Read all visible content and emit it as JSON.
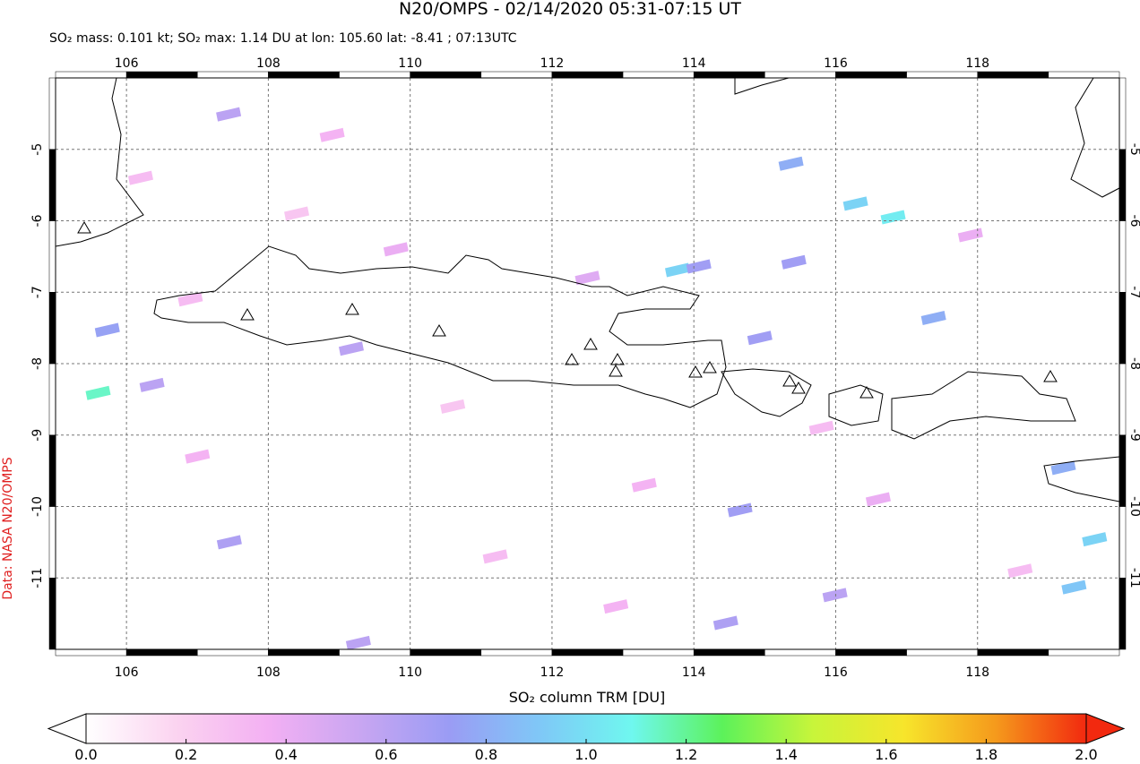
{
  "chart_data": {
    "type": "map",
    "title": "N20/OMPS - 02/14/2020 05:31-07:15 UT",
    "subtitle": "SO₂ mass: 0.101 kt; SO₂ max: 1.14 DU at lon: 105.60 lat: -8.41 ; 07:13UTC",
    "credit": "Data: NASA N20/OMPS",
    "colorbar_label": "SO₂ column TRM [DU]",
    "xlim": [
      105,
      120
    ],
    "ylim": [
      -12,
      -4
    ],
    "xticks": [
      106,
      108,
      110,
      112,
      114,
      116,
      118
    ],
    "yticks": [
      -5,
      -6,
      -7,
      -8,
      -9,
      -10,
      -11
    ],
    "grid": true,
    "clim": [
      0,
      2
    ],
    "cticks": [
      {
        "value": 0,
        "label": "0.0"
      },
      0.2,
      0.4,
      0.6,
      0.8,
      {
        "value": 1,
        "label": "1.0"
      },
      1.2,
      1.4,
      1.6,
      1.8,
      {
        "value": 2,
        "label": "2.0"
      }
    ],
    "colormap": [
      "#ffffff",
      "#fbd3f0",
      "#f3b0f3",
      "#c9a6f2",
      "#9a9cf4",
      "#7fc8f7",
      "#6ff7ef",
      "#5cf25a",
      "#c8f53a",
      "#f7e52b",
      "#f59a1c",
      "#f2290f"
    ],
    "pixels": {
      "lon": [
        105.6,
        105.73,
        106.36,
        107.44,
        107.45,
        109.17,
        109.27,
        113.77,
        114.07,
        115.41,
        114.93,
        116.28,
        116.81,
        115.37,
        117.38,
        119.21,
        119.65,
        119.36,
        114.65,
        114.45,
        115.99,
        106.2,
        107.0,
        108.4,
        109.8,
        111.2,
        112.5,
        113.3,
        115.8,
        117.9,
        118.6,
        110.6,
        112.9,
        116.6,
        106.9,
        108.9
      ],
      "lat": [
        -8.41,
        -7.53,
        -8.3,
        -4.51,
        -10.5,
        -7.79,
        -11.91,
        -6.69,
        -6.64,
        -6.58,
        -7.64,
        -5.76,
        -5.95,
        -5.2,
        -7.36,
        -9.46,
        -10.46,
        -11.13,
        -10.05,
        -11.63,
        -11.24,
        -5.4,
        -9.3,
        -5.9,
        -6.4,
        -10.7,
        -6.8,
        -9.7,
        -8.9,
        -6.2,
        -10.9,
        -8.6,
        -11.4,
        -9.9,
        -7.1,
        -4.8
      ],
      "values": [
        1.14,
        0.75,
        0.6,
        0.6,
        0.65,
        0.6,
        0.6,
        0.95,
        0.7,
        0.7,
        0.7,
        0.95,
        1.05,
        0.8,
        0.8,
        0.8,
        0.95,
        0.9,
        0.7,
        0.65,
        0.6,
        0.3,
        0.35,
        0.25,
        0.4,
        0.3,
        0.45,
        0.35,
        0.3,
        0.4,
        0.3,
        0.25,
        0.35,
        0.4,
        0.3,
        0.35
      ]
    }
  }
}
